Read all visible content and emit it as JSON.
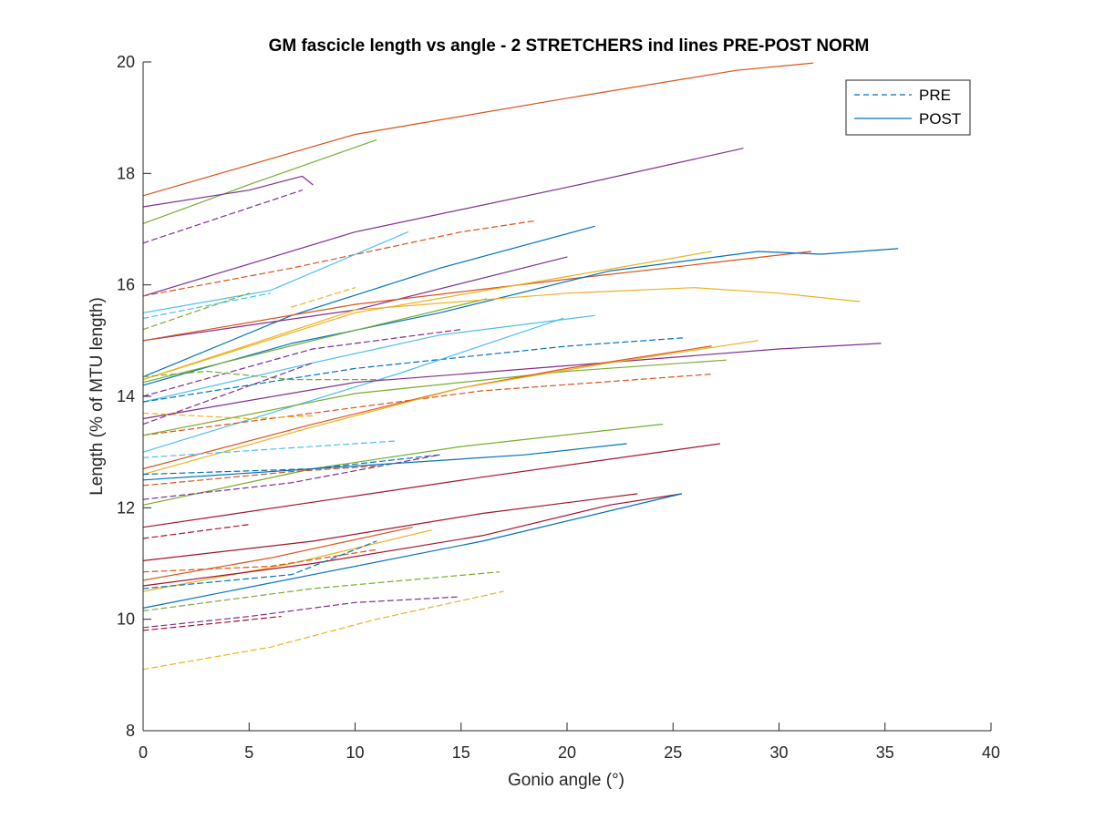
{
  "chart_data": {
    "type": "line",
    "title": "GM fascicle length vs angle - 2 STRETCHERS ind lines PRE-POST NORM",
    "xlabel": "Gonio angle (°)",
    "ylabel": "Length (% of MTU length)",
    "xlim": [
      0,
      40
    ],
    "ylim": [
      8,
      20
    ],
    "xticks": [
      "0",
      "5",
      "10",
      "15",
      "20",
      "25",
      "30",
      "35",
      "40"
    ],
    "yticks": [
      "8",
      "10",
      "12",
      "14",
      "16",
      "18",
      "20"
    ],
    "grid": false,
    "legend": {
      "position": "top-right",
      "entries": [
        {
          "label": "PRE",
          "style": "dashed",
          "color": "#0072BD"
        },
        {
          "label": "POST",
          "style": "solid",
          "color": "#0072BD"
        }
      ]
    },
    "series": [
      {
        "color": "#D95319",
        "dash": false,
        "points": [
          [
            0,
            17.6
          ],
          [
            10,
            18.7
          ],
          [
            20,
            19.35
          ],
          [
            28,
            19.85
          ],
          [
            31.6,
            19.98
          ]
        ]
      },
      {
        "color": "#77AC30",
        "dash": false,
        "points": [
          [
            0,
            17.1
          ],
          [
            5,
            17.8
          ],
          [
            11,
            18.6
          ]
        ]
      },
      {
        "color": "#7E2F8E",
        "dash": false,
        "points": [
          [
            0,
            17.4
          ],
          [
            5,
            17.7
          ],
          [
            7.5,
            17.95
          ],
          [
            8,
            17.8
          ]
        ]
      },
      {
        "color": "#7E2F8E",
        "dash": true,
        "points": [
          [
            0,
            16.75
          ],
          [
            7.5,
            17.7
          ]
        ]
      },
      {
        "color": "#7E2F8E",
        "dash": false,
        "points": [
          [
            0,
            15.8
          ],
          [
            10,
            16.95
          ],
          [
            20,
            17.75
          ],
          [
            28.3,
            18.45
          ]
        ]
      },
      {
        "color": "#D95319",
        "dash": true,
        "points": [
          [
            0,
            15.8
          ],
          [
            7,
            16.3
          ],
          [
            15,
            16.95
          ],
          [
            18.5,
            17.15
          ]
        ]
      },
      {
        "color": "#0072BD",
        "dash": false,
        "points": [
          [
            0,
            14.35
          ],
          [
            7,
            15.45
          ],
          [
            14,
            16.3
          ],
          [
            21.3,
            17.05
          ]
        ]
      },
      {
        "color": "#4DBEEE",
        "dash": false,
        "points": [
          [
            0,
            15.5
          ],
          [
            6,
            15.9
          ],
          [
            12.5,
            16.95
          ]
        ]
      },
      {
        "color": "#7E2F8E",
        "dash": false,
        "points": [
          [
            0,
            15.0
          ],
          [
            10,
            15.55
          ],
          [
            20,
            16.5
          ]
        ]
      },
      {
        "color": "#D95319",
        "dash": false,
        "points": [
          [
            0,
            15.0
          ],
          [
            10,
            15.65
          ],
          [
            20,
            16.1
          ],
          [
            31.5,
            16.6
          ]
        ]
      },
      {
        "color": "#0072BD",
        "dash": false,
        "points": [
          [
            0,
            14.2
          ],
          [
            7,
            14.95
          ],
          [
            14,
            15.5
          ],
          [
            22,
            16.25
          ],
          [
            29,
            16.6
          ],
          [
            32,
            16.55
          ],
          [
            35.6,
            16.65
          ]
        ]
      },
      {
        "color": "#EDB120",
        "dash": false,
        "points": [
          [
            0,
            14.3
          ],
          [
            10,
            15.5
          ],
          [
            20,
            16.15
          ],
          [
            26.8,
            16.6
          ]
        ]
      },
      {
        "color": "#77AC30",
        "dash": false,
        "points": [
          [
            0,
            14.25
          ],
          [
            8,
            15.0
          ],
          [
            16.2,
            15.75
          ]
        ]
      },
      {
        "color": "#EDB120",
        "dash": false,
        "points": [
          [
            0,
            14.3
          ],
          [
            10,
            15.55
          ],
          [
            20,
            15.85
          ],
          [
            26,
            15.95
          ],
          [
            30,
            15.85
          ],
          [
            33.8,
            15.7
          ]
        ]
      },
      {
        "color": "#4DBEEE",
        "dash": false,
        "points": [
          [
            0,
            13.9
          ],
          [
            8,
            14.6
          ],
          [
            14,
            15.1
          ],
          [
            21.3,
            15.45
          ]
        ]
      },
      {
        "color": "#77AC30",
        "dash": true,
        "points": [
          [
            0,
            15.2
          ],
          [
            5,
            15.85
          ]
        ]
      },
      {
        "color": "#4DBEEE",
        "dash": true,
        "points": [
          [
            0,
            15.4
          ],
          [
            6,
            15.85
          ]
        ]
      },
      {
        "color": "#EDB120",
        "dash": true,
        "points": [
          [
            7,
            15.6
          ],
          [
            10,
            15.95
          ]
        ]
      },
      {
        "color": "#0072BD",
        "dash": true,
        "points": [
          [
            0,
            13.9
          ],
          [
            10,
            14.5
          ],
          [
            20,
            14.9
          ],
          [
            25.5,
            15.05
          ]
        ]
      },
      {
        "color": "#7E2F8E",
        "dash": true,
        "points": [
          [
            0,
            14.0
          ],
          [
            8,
            14.85
          ],
          [
            15,
            15.2
          ]
        ]
      },
      {
        "color": "#4DBEEE",
        "dash": false,
        "points": [
          [
            0,
            13.0
          ],
          [
            6,
            13.7
          ],
          [
            12,
            14.4
          ],
          [
            19.8,
            15.4
          ]
        ]
      },
      {
        "color": "#7E2F8E",
        "dash": false,
        "points": [
          [
            0,
            13.6
          ],
          [
            10,
            14.25
          ],
          [
            20,
            14.55
          ],
          [
            30,
            14.85
          ],
          [
            34.8,
            14.95
          ]
        ]
      },
      {
        "color": "#D95319",
        "dash": true,
        "points": [
          [
            0,
            13.3
          ],
          [
            8,
            13.7
          ],
          [
            16,
            14.1
          ],
          [
            26.9,
            14.4
          ]
        ]
      },
      {
        "color": "#77AC30",
        "dash": false,
        "points": [
          [
            0,
            13.3
          ],
          [
            10,
            14.05
          ],
          [
            20,
            14.45
          ],
          [
            27.5,
            14.65
          ]
        ]
      },
      {
        "color": "#77AC30",
        "dash": true,
        "points": [
          [
            0,
            14.35
          ],
          [
            3,
            14.45
          ],
          [
            7,
            14.3
          ],
          [
            11.5,
            14.3
          ]
        ]
      },
      {
        "color": "#EDB120",
        "dash": true,
        "points": [
          [
            0,
            13.7
          ],
          [
            5,
            13.6
          ],
          [
            8,
            13.65
          ]
        ]
      },
      {
        "color": "#7E2F8E",
        "dash": true,
        "points": [
          [
            0,
            13.5
          ],
          [
            4,
            14.05
          ],
          [
            8,
            14.6
          ]
        ]
      },
      {
        "color": "#D95319",
        "dash": false,
        "points": [
          [
            0,
            12.7
          ],
          [
            8,
            13.5
          ],
          [
            15,
            14.15
          ],
          [
            20,
            14.5
          ],
          [
            26.8,
            14.9
          ]
        ]
      },
      {
        "color": "#EDB120",
        "dash": false,
        "points": [
          [
            0,
            12.6
          ],
          [
            8,
            13.45
          ],
          [
            15,
            14.15
          ],
          [
            22,
            14.6
          ],
          [
            29,
            15.0
          ]
        ]
      },
      {
        "color": "#4DBEEE",
        "dash": true,
        "points": [
          [
            0,
            12.9
          ],
          [
            6,
            13.05
          ],
          [
            12,
            13.2
          ]
        ]
      },
      {
        "color": "#77AC30",
        "dash": false,
        "points": [
          [
            0,
            12.05
          ],
          [
            8,
            12.7
          ],
          [
            15,
            13.1
          ],
          [
            24.5,
            13.5
          ]
        ]
      },
      {
        "color": "#0072BD",
        "dash": true,
        "points": [
          [
            0,
            12.6
          ],
          [
            8,
            12.7
          ],
          [
            14,
            12.95
          ]
        ]
      },
      {
        "color": "#7E2F8E",
        "dash": true,
        "points": [
          [
            0,
            12.15
          ],
          [
            7,
            12.45
          ],
          [
            14,
            12.95
          ]
        ]
      },
      {
        "color": "#0072BD",
        "dash": false,
        "points": [
          [
            0,
            12.5
          ],
          [
            10,
            12.75
          ],
          [
            18,
            12.95
          ],
          [
            22.8,
            13.15
          ]
        ]
      },
      {
        "color": "#D95319",
        "dash": true,
        "points": [
          [
            0,
            12.4
          ],
          [
            7,
            12.65
          ],
          [
            11,
            12.75
          ]
        ]
      },
      {
        "color": "#A2142F",
        "dash": false,
        "points": [
          [
            0,
            11.65
          ],
          [
            8,
            12.1
          ],
          [
            16,
            12.55
          ],
          [
            27.2,
            13.15
          ]
        ]
      },
      {
        "color": "#A2142F",
        "dash": false,
        "points": [
          [
            0,
            11.05
          ],
          [
            8,
            11.4
          ],
          [
            16,
            11.9
          ],
          [
            23.3,
            12.25
          ]
        ]
      },
      {
        "color": "#A2142F",
        "dash": true,
        "points": [
          [
            0,
            11.45
          ],
          [
            5,
            11.7
          ]
        ]
      },
      {
        "color": "#D95319",
        "dash": false,
        "points": [
          [
            0,
            10.7
          ],
          [
            6,
            11.1
          ],
          [
            12.7,
            11.65
          ]
        ]
      },
      {
        "color": "#EDB120",
        "dash": false,
        "points": [
          [
            0,
            10.5
          ],
          [
            7,
            11.0
          ],
          [
            13.6,
            11.6
          ]
        ]
      },
      {
        "color": "#A2142F",
        "dash": false,
        "points": [
          [
            0,
            10.6
          ],
          [
            8,
            11.0
          ],
          [
            16,
            11.5
          ],
          [
            22,
            12.05
          ],
          [
            25.4,
            12.25
          ]
        ]
      },
      {
        "color": "#0072BD",
        "dash": false,
        "points": [
          [
            0,
            10.2
          ],
          [
            8,
            10.8
          ],
          [
            16,
            11.4
          ],
          [
            25.4,
            12.25
          ]
        ]
      },
      {
        "color": "#D95319",
        "dash": true,
        "points": [
          [
            0,
            10.85
          ],
          [
            6,
            10.95
          ],
          [
            11,
            11.25
          ]
        ]
      },
      {
        "color": "#0072BD",
        "dash": true,
        "points": [
          [
            0,
            10.55
          ],
          [
            7,
            10.8
          ],
          [
            11,
            11.4
          ]
        ]
      },
      {
        "color": "#77AC30",
        "dash": true,
        "points": [
          [
            0,
            10.15
          ],
          [
            8,
            10.55
          ],
          [
            16.8,
            10.85
          ]
        ]
      },
      {
        "color": "#7E2F8E",
        "dash": true,
        "points": [
          [
            0,
            9.85
          ],
          [
            5,
            10.05
          ],
          [
            10,
            10.3
          ],
          [
            14.8,
            10.4
          ]
        ]
      },
      {
        "color": "#A2142F",
        "dash": true,
        "points": [
          [
            0,
            9.8
          ],
          [
            4,
            9.95
          ],
          [
            6.5,
            10.05
          ]
        ]
      },
      {
        "color": "#EDB120",
        "dash": true,
        "points": [
          [
            0,
            9.1
          ],
          [
            6,
            9.5
          ],
          [
            11,
            10.0
          ],
          [
            17,
            10.5
          ]
        ]
      }
    ]
  }
}
